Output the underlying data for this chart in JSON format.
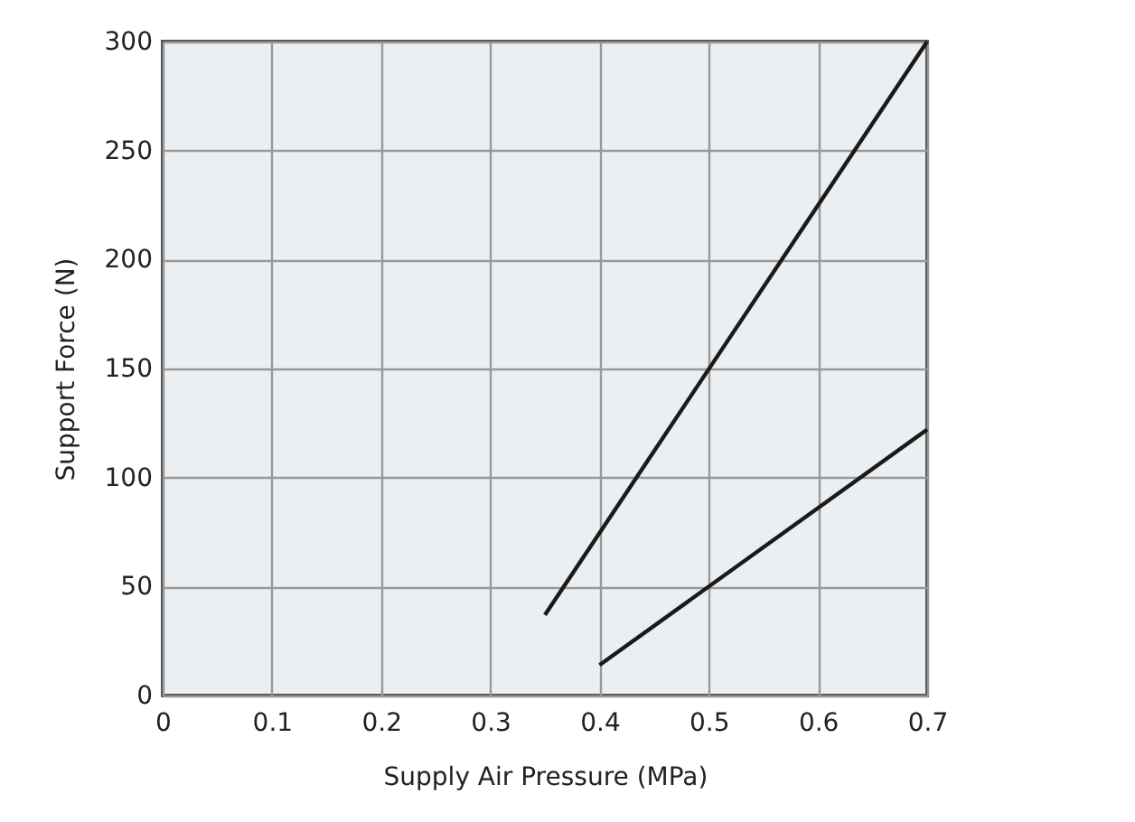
{
  "chart_data": {
    "type": "line",
    "xlabel": "Supply Air Pressure (MPa)",
    "ylabel": "Support Force (N)",
    "series": [
      {
        "color": "#1a1a1a",
        "x": [
          0.35,
          0.7
        ],
        "values": [
          37,
          300
        ]
      },
      {
        "color": "#1a1a1a",
        "x": [
          0.4,
          0.7
        ],
        "values": [
          14,
          122
        ]
      }
    ],
    "xlim": [
      0,
      0.7
    ],
    "xticks": [
      0,
      0.1,
      0.2,
      0.3,
      0.4,
      0.5,
      0.6,
      0.7
    ],
    "ylim": [
      0,
      300
    ],
    "yticks": [
      0,
      50,
      100,
      150,
      200,
      250,
      300
    ],
    "grid": true,
    "marker": "none",
    "line_style": "solid"
  }
}
